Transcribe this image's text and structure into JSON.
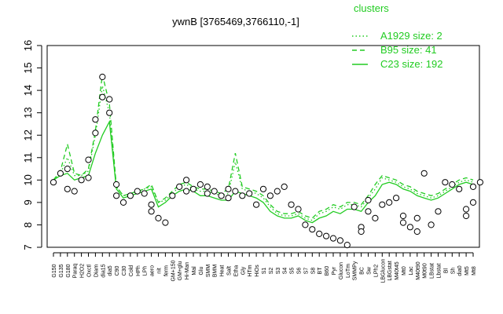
{
  "chart_data": {
    "type": "line",
    "title": "ywnB [3765469,3766110,-1]",
    "ylim": [
      7,
      16
    ],
    "yticks": [
      7,
      8,
      9,
      10,
      11,
      12,
      13,
      14,
      15,
      16
    ],
    "legend": {
      "title": "clusters",
      "position": "top-right",
      "entries": [
        {
          "label": "A1929 size: 2",
          "style": "dotted"
        },
        {
          "label": "B95 size: 41",
          "style": "dashed"
        },
        {
          "label": "C23 size: 192",
          "style": "solid"
        }
      ]
    },
    "line_color": "#22cc22",
    "point_color": "#000000",
    "xlabels": [
      "G150",
      "G135",
      "G180",
      "Paraq",
      "H2O2",
      "Oxctl",
      "Diam",
      "dia15",
      "dia5",
      "C90",
      "C30",
      "Cold",
      "HPh",
      "LPh",
      "aero",
      "nit",
      "ferm",
      "GM+150",
      "GM+glu",
      "Hi-Man",
      "Mal",
      "Glu",
      "SMM",
      "BMM",
      "Heat",
      "Salt",
      "Etha",
      "Gly",
      "HTm",
      "HiOs",
      "S1",
      "S2",
      "S3",
      "S4",
      "S5",
      "S6",
      "S7",
      "S8",
      "BT",
      "B60",
      "Pyr",
      "Glucon",
      "LoTm",
      "SMMPy",
      "BC",
      "Sw",
      "LPh2",
      "LBGlucon",
      "LBGstat",
      "M40t45",
      "Mt0",
      "Lac",
      "M40t90",
      "M0t90",
      "LBstat",
      "Lbstat",
      "Bl",
      "Sh",
      "dia0",
      "Mt5",
      "Mt8"
    ],
    "series": [
      {
        "style": "solid",
        "values": [
          10.0,
          10.2,
          10.3,
          10.0,
          10.1,
          10.2,
          11.2,
          12.0,
          12.6,
          9.6,
          9.2,
          9.3,
          9.4,
          9.5,
          9.6,
          8.8,
          9.0,
          9.3,
          9.5,
          9.6,
          9.5,
          9.3,
          9.3,
          9.2,
          9.1,
          9.1,
          9.5,
          9.4,
          9.3,
          9.2,
          9.0,
          8.6,
          8.4,
          8.3,
          8.3,
          8.4,
          8.2,
          8.1,
          8.3,
          8.4,
          8.6,
          8.5,
          8.7,
          8.7,
          8.6,
          9.0,
          9.3,
          9.8,
          9.9,
          9.8,
          9.6,
          9.5,
          9.3,
          9.2,
          9.1,
          9.2,
          9.4,
          9.6,
          9.8,
          9.9,
          9.8
        ]
      },
      {
        "style": "dashed",
        "values": [
          10.0,
          10.4,
          11.6,
          10.3,
          10.2,
          10.5,
          12.2,
          14.7,
          13.4,
          9.7,
          9.3,
          9.4,
          9.5,
          9.6,
          9.8,
          9.0,
          9.2,
          9.5,
          9.8,
          9.9,
          9.7,
          9.6,
          9.6,
          9.5,
          9.4,
          9.6,
          11.2,
          9.7,
          9.6,
          9.5,
          9.3,
          8.9,
          8.6,
          8.5,
          8.5,
          8.6,
          8.4,
          8.3,
          8.6,
          8.7,
          8.9,
          8.8,
          9.0,
          9.0,
          8.9,
          9.3,
          9.8,
          10.2,
          10.1,
          10.0,
          9.8,
          9.7,
          9.5,
          9.4,
          9.3,
          9.4,
          9.6,
          9.8,
          10.0,
          10.1,
          10.0
        ]
      },
      {
        "style": "dotted",
        "values": [
          10.0,
          10.3,
          11.0,
          10.2,
          10.2,
          10.4,
          12.0,
          14.2,
          13.0,
          9.7,
          9.3,
          9.4,
          9.5,
          9.6,
          9.7,
          9.0,
          9.1,
          9.4,
          9.7,
          9.8,
          9.6,
          9.5,
          9.5,
          9.4,
          9.3,
          9.4,
          10.8,
          9.6,
          9.5,
          9.4,
          9.2,
          8.8,
          8.5,
          8.4,
          8.4,
          8.5,
          8.3,
          8.2,
          8.5,
          8.6,
          8.8,
          8.7,
          8.9,
          8.9,
          8.8,
          9.2,
          9.6,
          10.1,
          10.0,
          9.9,
          9.7,
          9.6,
          9.4,
          9.3,
          9.2,
          9.3,
          9.5,
          9.7,
          9.9,
          10.0,
          9.9
        ]
      }
    ],
    "points": [
      {
        "x": 0,
        "y": 9.9
      },
      {
        "x": 1,
        "y": 10.3
      },
      {
        "x": 2,
        "y": 10.5
      },
      {
        "x": 2,
        "y": 9.6
      },
      {
        "x": 3,
        "y": 9.5
      },
      {
        "x": 4,
        "y": 10.0
      },
      {
        "x": 5,
        "y": 10.9
      },
      {
        "x": 5,
        "y": 10.1
      },
      {
        "x": 6,
        "y": 12.7
      },
      {
        "x": 6,
        "y": 12.1
      },
      {
        "x": 7,
        "y": 14.6
      },
      {
        "x": 7,
        "y": 13.7
      },
      {
        "x": 8,
        "y": 13.6
      },
      {
        "x": 8,
        "y": 13.0
      },
      {
        "x": 9,
        "y": 9.8
      },
      {
        "x": 9,
        "y": 9.3
      },
      {
        "x": 10,
        "y": 9.0
      },
      {
        "x": 11,
        "y": 9.3
      },
      {
        "x": 12,
        "y": 9.5
      },
      {
        "x": 13,
        "y": 9.4
      },
      {
        "x": 14,
        "y": 8.9
      },
      {
        "x": 14,
        "y": 8.6
      },
      {
        "x": 15,
        "y": 8.3
      },
      {
        "x": 16,
        "y": 8.1
      },
      {
        "x": 17,
        "y": 9.3
      },
      {
        "x": 18,
        "y": 9.7
      },
      {
        "x": 19,
        "y": 10.0
      },
      {
        "x": 19,
        "y": 9.5
      },
      {
        "x": 20,
        "y": 9.6
      },
      {
        "x": 21,
        "y": 9.8
      },
      {
        "x": 22,
        "y": 9.7
      },
      {
        "x": 22,
        "y": 9.4
      },
      {
        "x": 23,
        "y": 9.5
      },
      {
        "x": 24,
        "y": 9.3
      },
      {
        "x": 25,
        "y": 9.2
      },
      {
        "x": 25,
        "y": 9.6
      },
      {
        "x": 26,
        "y": 9.5
      },
      {
        "x": 27,
        "y": 9.3
      },
      {
        "x": 28,
        "y": 9.4
      },
      {
        "x": 29,
        "y": 8.9
      },
      {
        "x": 30,
        "y": 9.6
      },
      {
        "x": 31,
        "y": 9.3
      },
      {
        "x": 32,
        "y": 9.5
      },
      {
        "x": 33,
        "y": 9.7
      },
      {
        "x": 34,
        "y": 8.9
      },
      {
        "x": 35,
        "y": 8.7
      },
      {
        "x": 36,
        "y": 8.0
      },
      {
        "x": 37,
        "y": 7.8
      },
      {
        "x": 38,
        "y": 7.6
      },
      {
        "x": 39,
        "y": 7.5
      },
      {
        "x": 40,
        "y": 7.4
      },
      {
        "x": 41,
        "y": 7.3
      },
      {
        "x": 42,
        "y": 7.1
      },
      {
        "x": 43,
        "y": 8.8
      },
      {
        "x": 44,
        "y": 7.9
      },
      {
        "x": 44,
        "y": 7.7
      },
      {
        "x": 45,
        "y": 9.1
      },
      {
        "x": 45,
        "y": 8.6
      },
      {
        "x": 46,
        "y": 8.3
      },
      {
        "x": 47,
        "y": 8.9
      },
      {
        "x": 48,
        "y": 9.0
      },
      {
        "x": 49,
        "y": 9.2
      },
      {
        "x": 50,
        "y": 8.4
      },
      {
        "x": 50,
        "y": 8.1
      },
      {
        "x": 51,
        "y": 7.9
      },
      {
        "x": 52,
        "y": 7.7
      },
      {
        "x": 52,
        "y": 8.3
      },
      {
        "x": 53,
        "y": 10.3
      },
      {
        "x": 54,
        "y": 8.0
      },
      {
        "x": 55,
        "y": 8.6
      },
      {
        "x": 56,
        "y": 9.9
      },
      {
        "x": 57,
        "y": 9.8
      },
      {
        "x": 58,
        "y": 9.6
      },
      {
        "x": 59,
        "y": 8.7
      },
      {
        "x": 59,
        "y": 8.4
      },
      {
        "x": 60,
        "y": 9.0
      },
      {
        "x": 60,
        "y": 9.7
      },
      {
        "x": 61,
        "y": 9.9
      }
    ]
  }
}
